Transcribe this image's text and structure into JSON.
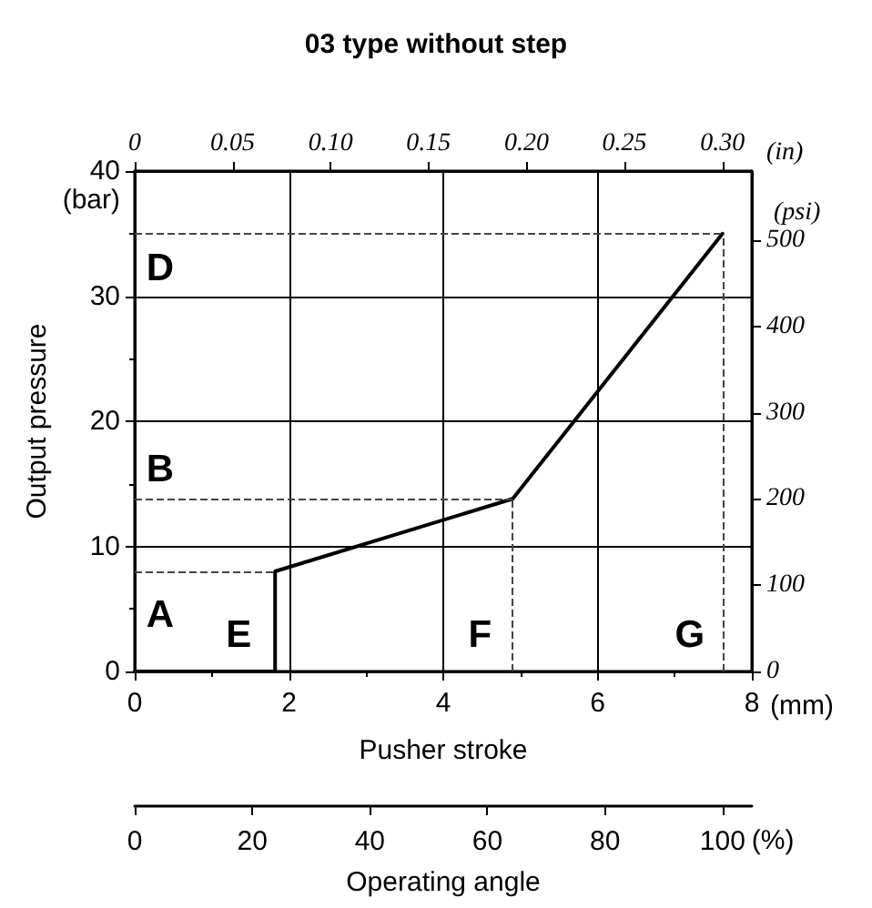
{
  "chart_data": {
    "type": "line",
    "title": "03 type without step",
    "xlabel": "Pusher stroke",
    "ylabel": "Output pressure",
    "x2label": "(in)",
    "y2label": "(psi)",
    "x": [
      0,
      1.82,
      1.82,
      4.9,
      7.62
    ],
    "series": [
      {
        "color": "#000000",
        "values": [
          0,
          0,
          8,
          13.8,
          35
        ]
      }
    ],
    "xlim": [
      0,
      8
    ],
    "xticks": [
      0,
      2,
      4,
      6,
      8
    ],
    "ylim": [
      0,
      40
    ],
    "yticks": [
      0,
      10,
      20,
      30,
      40
    ],
    "x2lim": [
      0,
      0.315
    ],
    "x2ticks": [
      0,
      {
        "value": 0.05,
        "label": "0.05"
      },
      {
        "value": 0.1,
        "label": "0.10"
      },
      {
        "value": 0.15,
        "label": "0.15"
      },
      {
        "value": 0.2,
        "label": "0.20"
      },
      {
        "value": 0.25,
        "label": "0.25"
      },
      {
        "value": 0.3,
        "label": "0.30"
      }
    ],
    "y2lim": [
      0,
      580
    ],
    "y2ticks": [
      0,
      100,
      200,
      300,
      400,
      500
    ],
    "ref_lines": [
      {
        "axis": "y",
        "value": 8,
        "color": "#444444",
        "line_style": "dashed"
      },
      {
        "axis": "y",
        "value": 13.8,
        "color": "#444444",
        "line_style": "dashed"
      },
      {
        "axis": "y",
        "value": 35,
        "color": "#444444",
        "line_style": "dashed"
      },
      {
        "axis": "x",
        "value": 4.9,
        "color": "#444444",
        "line_style": "dashed"
      },
      {
        "axis": "x",
        "value": 7.62,
        "color": "#444444",
        "line_style": "dashed"
      }
    ],
    "annotations": [
      "(bar)",
      "(mm)",
      "A",
      "B",
      "D",
      "E",
      "F",
      "G",
      "(%)",
      "Operating angle",
      "0",
      "20",
      "40",
      "60",
      "80",
      "100"
    ],
    "grid": true,
    "marker": "none",
    "line_style": "solid"
  }
}
